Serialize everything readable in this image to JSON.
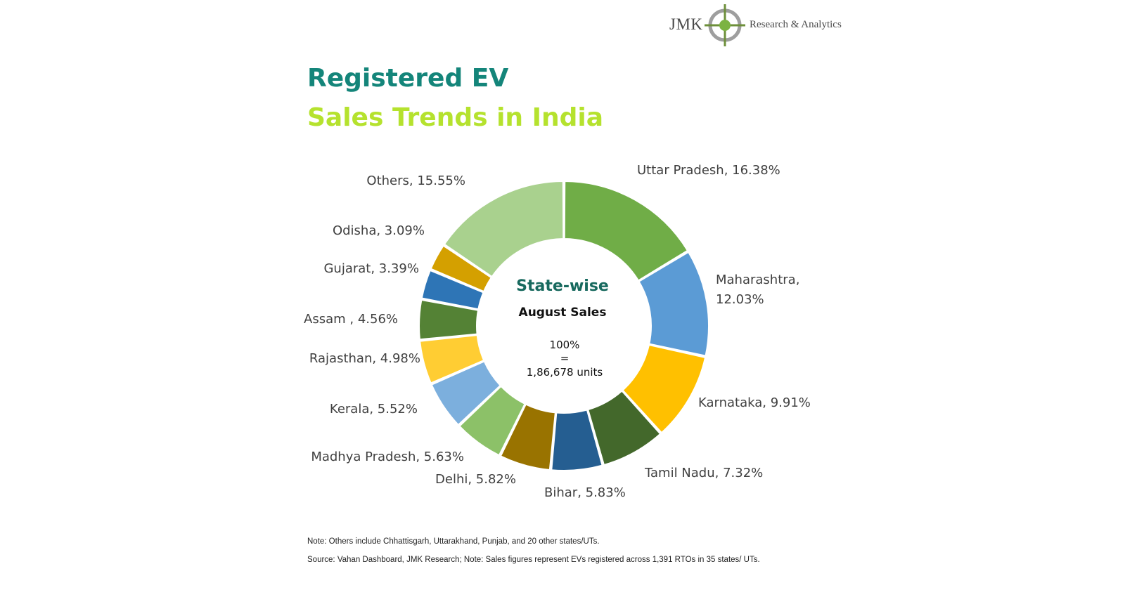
{
  "logo": {
    "brand": "JMK",
    "tagline": "Research & Analytics",
    "accent_color": "#7cb342"
  },
  "title": {
    "line1": "Registered EV",
    "line2": "Sales Trends in India",
    "line1_color": "#14857a",
    "line2_color": "#b5e22e"
  },
  "chart_data": {
    "type": "pie",
    "style": "donut",
    "title": "State-wise",
    "subtitle": "August Sales",
    "center_lines": [
      "100%",
      "=",
      "1,86,678 units"
    ],
    "slices": [
      {
        "label": "Uttar Pradesh",
        "value": 16.38,
        "display": "Uttar Pradesh, 16.38%",
        "color": "#70ad47"
      },
      {
        "label": "Maharashtra",
        "value": 12.03,
        "display_lines": [
          "Maharashtra,",
          "12.03%"
        ],
        "color": "#5b9bd5"
      },
      {
        "label": "Karnataka",
        "value": 9.91,
        "display": "Karnataka, 9.91%",
        "color": "#ffc000"
      },
      {
        "label": "Tamil Nadu",
        "value": 7.32,
        "display": "Tamil Nadu, 7.32%",
        "color": "#43682b"
      },
      {
        "label": "Bihar",
        "value": 5.83,
        "display": "Bihar, 5.83%",
        "color": "#255e91"
      },
      {
        "label": "Delhi",
        "value": 5.82,
        "display": "Delhi, 5.82%",
        "color": "#997300"
      },
      {
        "label": "Madhya Pradesh",
        "value": 5.63,
        "display": "Madhya Pradesh, 5.63%",
        "color": "#8cc168"
      },
      {
        "label": "Kerala",
        "value": 5.52,
        "display": "Kerala, 5.52%",
        "color": "#7cafdd"
      },
      {
        "label": "Rajasthan",
        "value": 4.98,
        "display": "Rajasthan, 4.98%",
        "color": "#ffcd33"
      },
      {
        "label": "Assam",
        "value": 4.56,
        "display": "Assam , 4.56%",
        "color": "#548235"
      },
      {
        "label": "Gujarat",
        "value": 3.39,
        "display": "Gujarat, 3.39%",
        "color": "#2e75b6"
      },
      {
        "label": "Odisha",
        "value": 3.09,
        "display": "Odisha, 3.09%",
        "color": "#d4a000"
      },
      {
        "label": "Others",
        "value": 15.55,
        "display": "Others, 15.55%",
        "color": "#a9d18e"
      }
    ]
  },
  "notes": {
    "note1": "Note: Others include Chhattisgarh, Uttarakhand, Punjab, and 20 other states/UTs.",
    "note2": "Source: Vahan Dashboard, JMK Research; Note: Sales figures represent EVs registered across 1,391 RTOs in 35 states/ UTs."
  }
}
